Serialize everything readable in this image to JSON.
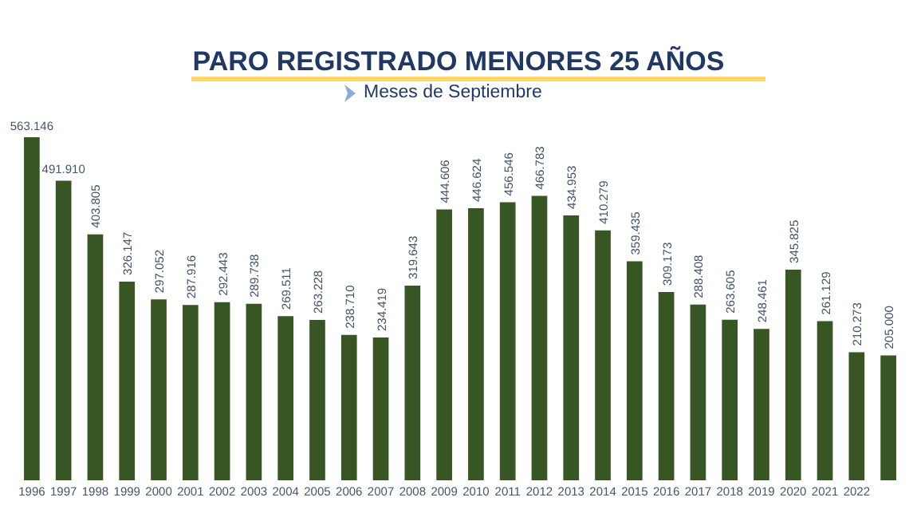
{
  "chart_data": {
    "type": "bar",
    "title": "PARO REGISTRADO MENORES 25 AÑOS",
    "subtitle": "Meses de Septiembre",
    "categories": [
      "1996",
      "1997",
      "1998",
      "1999",
      "2000",
      "2001",
      "2002",
      "2003",
      "2004",
      "2005",
      "2006",
      "2007",
      "2008",
      "2009",
      "2010",
      "2011",
      "2012",
      "2013",
      "2014",
      "2015",
      "2016",
      "2017",
      "2018",
      "2019",
      "2020",
      "2021",
      "2022",
      null
    ],
    "values": [
      563146,
      491910,
      403805,
      326147,
      297052,
      287916,
      292443,
      289738,
      269511,
      263228,
      238710,
      234419,
      319643,
      444606,
      446624,
      456546,
      466783,
      434953,
      410279,
      359435,
      309173,
      288408,
      263605,
      248461,
      345825,
      261129,
      210273,
      205000
    ],
    "value_labels": [
      "563.146",
      "491.910",
      "403.805",
      "326.147",
      "297.052",
      "287.916",
      "292.443",
      "289.738",
      "269.511",
      "263.228",
      "238.710",
      "234.419",
      "319.643",
      "444.606",
      "446.624",
      "456.546",
      "466.783",
      "434.953",
      "410.279",
      "359.435",
      "309.173",
      "288.408",
      "263.605",
      "248.461",
      "345.825",
      "261.129",
      "210.273",
      "205.000"
    ],
    "color": "#375623",
    "grid": false,
    "legend": false
  }
}
